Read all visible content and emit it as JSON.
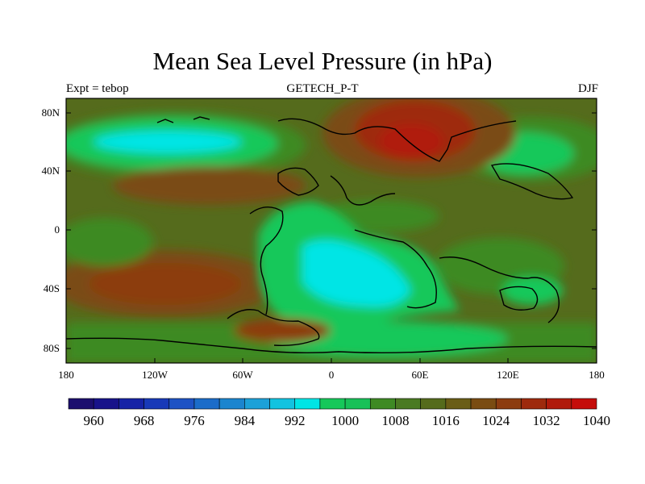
{
  "title": "Mean Sea Level Pressure (in hPa)",
  "subtitle_left": "Expt = tebop",
  "subtitle_center": "GETECH_P-T",
  "subtitle_right": "DJF",
  "lat_labels": [
    "80N",
    "40N",
    "0",
    "40S",
    "80S"
  ],
  "lon_labels": [
    "180",
    "120W",
    "60W",
    "0",
    "60E",
    "120E",
    "180"
  ],
  "colorbar": {
    "labels": [
      "960",
      "968",
      "976",
      "984",
      "992",
      "1000",
      "1008",
      "1016",
      "1024",
      "1032",
      "1040"
    ],
    "colors": [
      "#1c0f6e",
      "#18138a",
      "#1623a6",
      "#1839b8",
      "#1d52c4",
      "#1b6cc9",
      "#1b85cf",
      "#1ca1d8",
      "#12c3e0",
      "#00e5e5",
      "#16c85a",
      "#18c158",
      "#3e8a24",
      "#4a7a22",
      "#556b1c",
      "#6a5d16",
      "#7a4c12",
      "#8c3c10",
      "#9e2a0d",
      "#b01a0b",
      "#c50d0a"
    ]
  },
  "colors": {
    "background": "#556b1c",
    "coast": "#000000"
  }
}
